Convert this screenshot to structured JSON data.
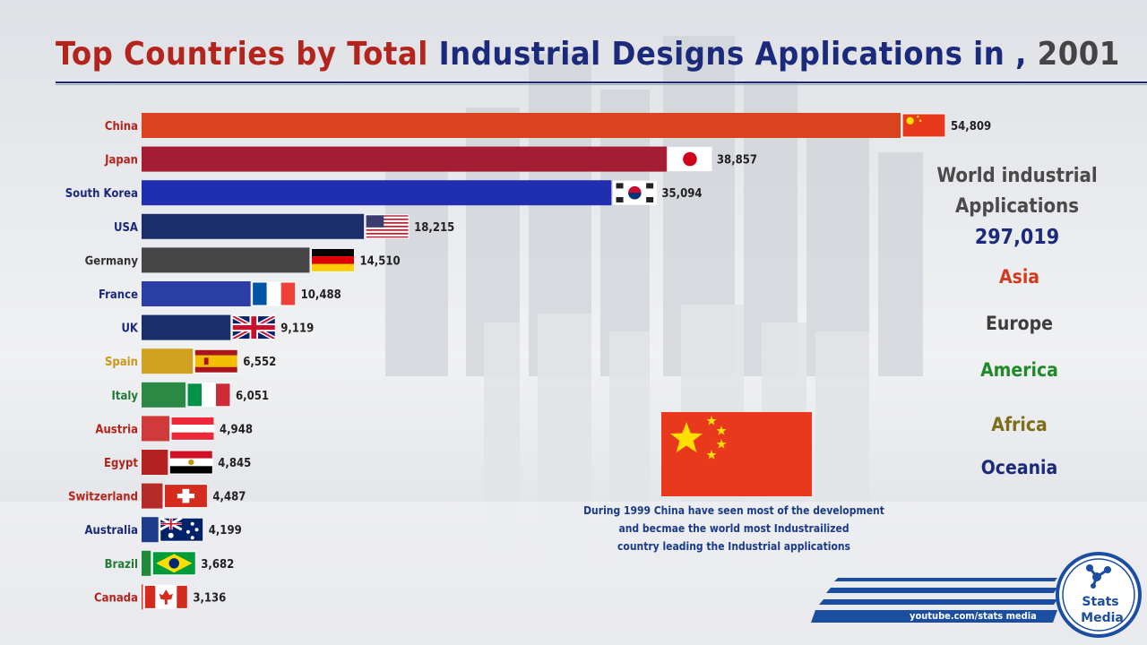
{
  "title": {
    "part1": "Top Countries by Total",
    "part2": "Industrial Designs Applications in ,",
    "year": "2001"
  },
  "world": {
    "title": "World industrial Applications",
    "value": "297,019"
  },
  "regions": [
    {
      "name": "Asia",
      "color": "#d23a1f"
    },
    {
      "name": "Europe",
      "color": "#3d3d3d"
    },
    {
      "name": "America",
      "color": "#1f8a2a"
    },
    {
      "name": "Africa",
      "color": "#7d6e1a"
    },
    {
      "name": "Oceania",
      "color": "#1b2a7a"
    }
  ],
  "note": {
    "lines": [
      "During 1999 China have seen most of the development",
      "and becmae the world most Industrailized",
      "country leading the Industrial applications"
    ]
  },
  "branding": {
    "url": "youtube.com/stats media",
    "logo_line1": "Stats",
    "logo_line2": "Media"
  },
  "chart_data": {
    "type": "bar",
    "orientation": "horizontal",
    "title": "Top Countries by Total Industrial Designs Applications in , 2001",
    "categories": [
      "China",
      "Japan",
      "South Korea",
      "USA",
      "Germany",
      "France",
      "UK",
      "Spain",
      "Italy",
      "Austria",
      "Egypt",
      "Switzerland",
      "Australia",
      "Brazil",
      "Canada"
    ],
    "values": [
      54809,
      38857,
      35094,
      18215,
      14510,
      10488,
      9119,
      6552,
      6051,
      4948,
      4845,
      4487,
      4199,
      3682,
      3136
    ],
    "value_labels": [
      "54,809",
      "38,857",
      "35,094",
      "18,215",
      "14,510",
      "10,488",
      "9,119",
      "6,552",
      "6,051",
      "4,948",
      "4,845",
      "4,487",
      "4,199",
      "3,682",
      "3,136"
    ],
    "bar_colors": [
      "#d9441f",
      "#a51d32",
      "#1f2fb0",
      "#1a2e6b",
      "#474747",
      "#2a3ea6",
      "#1a2e6b",
      "#d1a21f",
      "#2a8a45",
      "#d03a3a",
      "#b62222",
      "#b62a2a",
      "#1e3c8c",
      "#1e8a3a",
      "#d42a1f"
    ],
    "label_colors": [
      "#b3241d",
      "#b3241d",
      "#1b2a7a",
      "#1b2a7a",
      "#333333",
      "#1b2a7a",
      "#1b2a7a",
      "#c9981a",
      "#1e7a34",
      "#b3241d",
      "#b3241d",
      "#b3241d",
      "#1b2a7a",
      "#1e7a34",
      "#b3241d"
    ],
    "flags": [
      "china",
      "japan",
      "south-korea",
      "usa",
      "germany",
      "france",
      "uk",
      "spain",
      "italy",
      "austria",
      "egypt",
      "switzerland",
      "australia",
      "brazil",
      "canada"
    ],
    "xlim": [
      0,
      54809
    ]
  }
}
